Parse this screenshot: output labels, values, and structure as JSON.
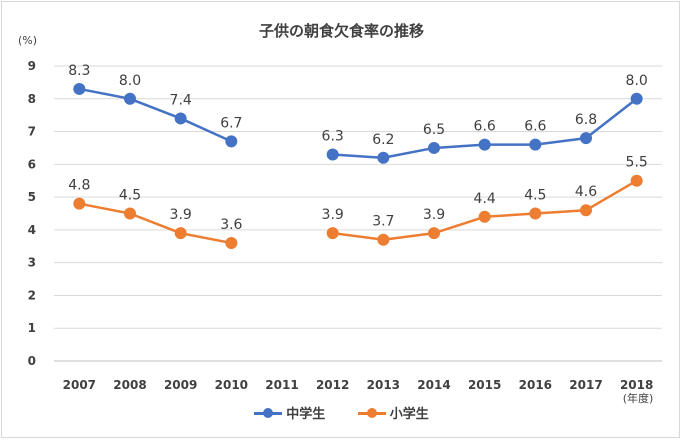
{
  "chart_data": {
    "type": "line",
    "title": "子供の朝食欠食率の推移",
    "ylabel": "(%)",
    "xlabel": "(年度)",
    "categories": [
      "2007",
      "2008",
      "2009",
      "2010",
      "2011",
      "2012",
      "2013",
      "2014",
      "2015",
      "2016",
      "2017",
      "2018"
    ],
    "ylim": [
      0,
      9
    ],
    "yticks": [
      "0",
      "1",
      "2",
      "3",
      "4",
      "5",
      "6",
      "7",
      "8",
      "9"
    ],
    "grid": true,
    "legend_position": "bottom",
    "series": [
      {
        "name": "中学生",
        "color": "#4472c4",
        "values": [
          8.3,
          8.0,
          7.4,
          6.7,
          null,
          6.3,
          6.2,
          6.5,
          6.6,
          6.6,
          6.8,
          8.0
        ],
        "labels": [
          "8.3",
          "8.0",
          "7.4",
          "6.7",
          "",
          "6.3",
          "6.2",
          "6.5",
          "6.6",
          "6.6",
          "6.8",
          "8.0"
        ]
      },
      {
        "name": "小学生",
        "color": "#ed7d31",
        "values": [
          4.8,
          4.5,
          3.9,
          3.6,
          null,
          3.9,
          3.7,
          3.9,
          4.4,
          4.5,
          4.6,
          5.5
        ],
        "labels": [
          "4.8",
          "4.5",
          "3.9",
          "3.6",
          "",
          "3.9",
          "3.7",
          "3.9",
          "4.4",
          "4.5",
          "4.6",
          "5.5"
        ]
      }
    ]
  }
}
